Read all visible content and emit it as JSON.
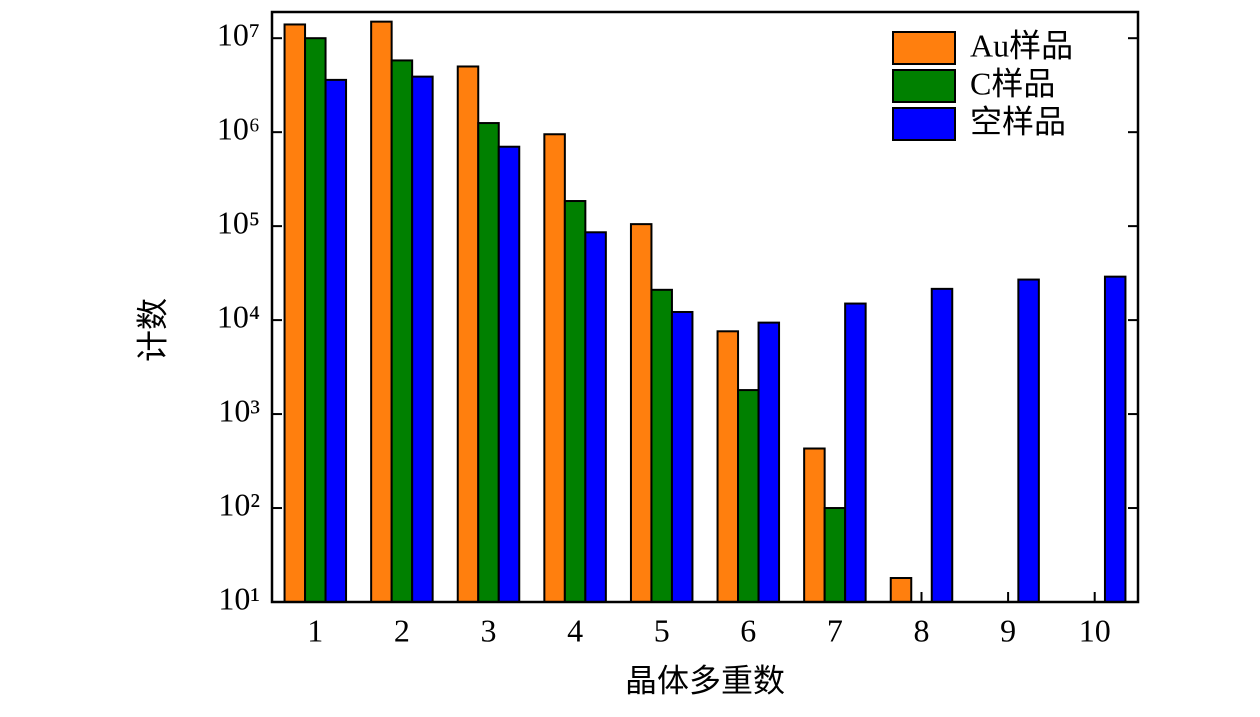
{
  "chart_data": {
    "type": "bar",
    "log_scale": true,
    "x_label": "晶体多重数",
    "y_label": "计数",
    "categories": [
      "1",
      "2",
      "3",
      "4",
      "5",
      "6",
      "7",
      "8",
      "9",
      "10"
    ],
    "series": [
      {
        "name": "Au样品",
        "color": "#ff7f0e",
        "values": [
          14000000,
          15000000,
          5000000,
          950000,
          105000,
          7600,
          430,
          18,
          null,
          null
        ]
      },
      {
        "name": "C样品",
        "color": "#008000",
        "values": [
          10000000,
          5800000,
          1250000,
          185000,
          21000,
          1800,
          100,
          null,
          null,
          null
        ]
      },
      {
        "name": "空样品",
        "color": "#0000ff",
        "values": [
          3600000,
          3900000,
          700000,
          86000,
          12200,
          9400,
          15000,
          21500,
          27000,
          29000
        ]
      }
    ],
    "ylim": [
      10,
      19000000
    ],
    "yticks": [
      {
        "value": 10,
        "label": "10¹"
      },
      {
        "value": 100,
        "label": "10²"
      },
      {
        "value": 1000,
        "label": "10³"
      },
      {
        "value": 10000,
        "label": "10⁴"
      },
      {
        "value": 100000,
        "label": "10⁵"
      },
      {
        "value": 1000000,
        "label": "10⁶"
      },
      {
        "value": 10000000,
        "label": "10⁷"
      }
    ],
    "legend": "upper right",
    "grid": false
  }
}
